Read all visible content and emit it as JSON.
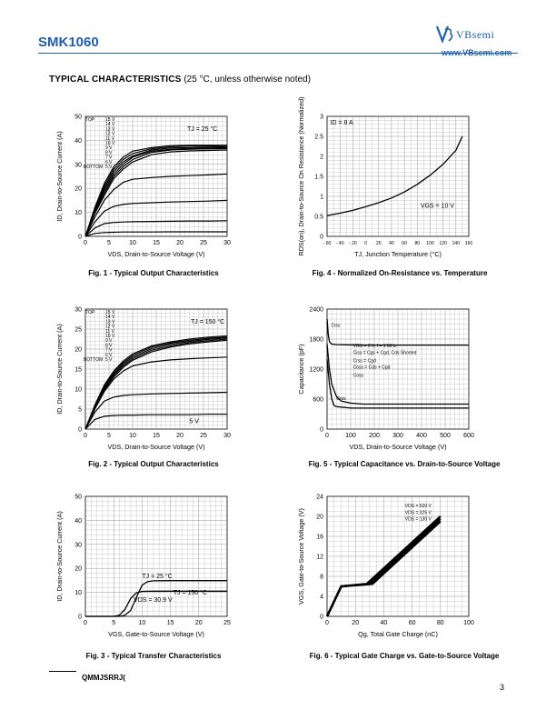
{
  "header": {
    "part_number": "SMK1060",
    "brand": "VBsemi",
    "website": "www.VBsemi.com"
  },
  "section": {
    "title": "TYPICAL CHARACTERISTICS",
    "note": "(25 °C, unless otherwise noted)"
  },
  "figures": {
    "fig1": {
      "caption": "Fig. 1 - Typical Output Characteristics"
    },
    "fig2": {
      "caption": "Fig. 2 - Typical Output Characteristics"
    },
    "fig3": {
      "caption": "Fig. 3 - Typical Transfer Characteristics"
    },
    "fig4": {
      "caption": "Fig. 4 - Normalized On-Resistance vs. Temperature"
    },
    "fig5": {
      "caption": "Fig. 5 - Typical Capacitance vs. Drain-to-Source Voltage"
    },
    "fig6": {
      "caption": "Fig. 6 - Typical Gate Charge vs. Gate-to-Source Voltage"
    }
  },
  "footer": {
    "code": "QMMJSRRJ(",
    "page": "3"
  },
  "chart_data": [
    {
      "id": "fig1",
      "type": "line",
      "xlabel": "VDS, Drain-to-Source Voltage (V)",
      "ylabel": "ID, Drain-to-Source Current (A)",
      "xlim": [
        0,
        30
      ],
      "ylim": [
        0,
        50
      ],
      "xticks": [
        0,
        5,
        10,
        15,
        20,
        25,
        30
      ],
      "yticks": [
        0,
        10,
        20,
        30,
        40,
        50
      ],
      "annotation": "TJ = 25 °C",
      "legend_top": "TOP",
      "legend_bottom": "BOTTOM",
      "legend": [
        "15 V",
        "14 V",
        "13 V",
        "12 V",
        "11 V",
        "10 V",
        "9 V",
        "8 V",
        "7 V",
        "6 V",
        "5 V"
      ],
      "series": [
        {
          "x": [
            0,
            2,
            4,
            6,
            8,
            10,
            14,
            18,
            22,
            26,
            30
          ],
          "y": [
            0,
            12,
            22,
            29,
            33,
            35.5,
            37,
            37.8,
            38,
            38,
            38
          ]
        },
        {
          "x": [
            0,
            2,
            4,
            6,
            8,
            10,
            14,
            18,
            22,
            26,
            30
          ],
          "y": [
            0,
            11.5,
            21,
            28,
            32,
            34.5,
            36.5,
            37.3,
            37.6,
            37.7,
            37.8
          ]
        },
        {
          "x": [
            0,
            2,
            4,
            6,
            8,
            10,
            14,
            18,
            22,
            26,
            30
          ],
          "y": [
            0,
            11,
            20,
            27,
            31,
            33.5,
            36,
            36.8,
            37,
            37.2,
            37.3
          ]
        },
        {
          "x": [
            0,
            2,
            4,
            6,
            8,
            10,
            14,
            18,
            22,
            26,
            30
          ],
          "y": [
            0,
            10.5,
            19,
            26,
            30,
            33,
            35.5,
            36.3,
            36.6,
            36.8,
            37
          ]
        },
        {
          "x": [
            0,
            2,
            4,
            6,
            8,
            10,
            14,
            18,
            22,
            26,
            30
          ],
          "y": [
            0,
            10,
            18,
            25,
            29,
            32,
            35,
            36,
            36.3,
            36.5,
            36.6
          ]
        },
        {
          "x": [
            0,
            2,
            4,
            6,
            8,
            10,
            14,
            18,
            22,
            26,
            30
          ],
          "y": [
            0,
            9.5,
            17,
            24,
            28,
            31,
            34,
            35.2,
            35.6,
            35.8,
            36
          ]
        },
        {
          "x": [
            0,
            2,
            4,
            6,
            8,
            10,
            14,
            18,
            22,
            26,
            30
          ],
          "y": [
            0,
            8,
            15,
            19.5,
            22.5,
            23.8,
            24.5,
            25,
            25.3,
            25.6,
            26
          ]
        },
        {
          "x": [
            0,
            2,
            4,
            6,
            8,
            10,
            14,
            18,
            22,
            26,
            30
          ],
          "y": [
            0,
            6,
            10.5,
            12.5,
            13.3,
            13.7,
            14,
            14.3,
            14.5,
            14.7,
            15
          ]
        },
        {
          "x": [
            0,
            2,
            4,
            6,
            8,
            10,
            14,
            18,
            22,
            26,
            30
          ],
          "y": [
            0,
            3.5,
            5.3,
            5.8,
            6,
            6.1,
            6.2,
            6.3,
            6.4,
            6.4,
            6.5
          ]
        },
        {
          "x": [
            0,
            2,
            4,
            6,
            8,
            10,
            14,
            18,
            22,
            26,
            30
          ],
          "y": [
            0,
            1.2,
            1.6,
            1.7,
            1.8,
            1.8,
            1.8,
            1.9,
            1.9,
            1.9,
            1.9
          ]
        }
      ]
    },
    {
      "id": "fig2",
      "type": "line",
      "xlabel": "VDS, Drain-to-Source Voltage (V)",
      "ylabel": "ID, Drain-to-Source Current (A)",
      "xlim": [
        0,
        30
      ],
      "ylim": [
        0,
        30
      ],
      "xticks": [
        0,
        5,
        10,
        15,
        20,
        25,
        30
      ],
      "yticks": [
        0,
        5,
        10,
        15,
        20,
        25,
        30
      ],
      "annotation": "TJ = 150 °C",
      "annotation2": "5 V",
      "legend_top": "TOP",
      "legend_bottom": "BOTTOM",
      "legend": [
        "15 V",
        "14 V",
        "13 V",
        "12 V",
        "11 V",
        "10 V",
        "9 V",
        "8 V",
        "7 V",
        "6 V",
        "5 V"
      ],
      "series": [
        {
          "x": [
            0,
            2,
            4,
            6,
            8,
            10,
            14,
            18,
            22,
            26,
            30
          ],
          "y": [
            0,
            6,
            11,
            14.5,
            17,
            18.8,
            20.8,
            21.8,
            22.5,
            23,
            23.3
          ]
        },
        {
          "x": [
            0,
            2,
            4,
            6,
            8,
            10,
            14,
            18,
            22,
            26,
            30
          ],
          "y": [
            0,
            5.8,
            10.7,
            14.2,
            16.6,
            18.4,
            20.5,
            21.5,
            22.2,
            22.7,
            23
          ]
        },
        {
          "x": [
            0,
            2,
            4,
            6,
            8,
            10,
            14,
            18,
            22,
            26,
            30
          ],
          "y": [
            0,
            5.6,
            10.4,
            13.8,
            16.2,
            18,
            20.1,
            21.2,
            21.9,
            22.4,
            22.8
          ]
        },
        {
          "x": [
            0,
            2,
            4,
            6,
            8,
            10,
            14,
            18,
            22,
            26,
            30
          ],
          "y": [
            0,
            5.4,
            10.1,
            13.4,
            15.8,
            17.6,
            19.7,
            20.8,
            21.6,
            22.1,
            22.5
          ]
        },
        {
          "x": [
            0,
            2,
            4,
            6,
            8,
            10,
            14,
            18,
            22,
            26,
            30
          ],
          "y": [
            0,
            5.2,
            9.8,
            13,
            15.4,
            17.2,
            19.3,
            20.5,
            21.3,
            21.8,
            22.2
          ]
        },
        {
          "x": [
            0,
            2,
            4,
            6,
            8,
            10,
            14,
            18,
            22,
            26,
            30
          ],
          "y": [
            0,
            5,
            9.4,
            12.5,
            14.5,
            15.8,
            16.8,
            17.3,
            17.6,
            17.8,
            18
          ]
        },
        {
          "x": [
            0,
            2,
            4,
            6,
            8,
            10,
            14,
            18,
            22,
            26,
            30
          ],
          "y": [
            0,
            4.2,
            7,
            8,
            8.4,
            8.6,
            8.8,
            8.9,
            9,
            9.1,
            9.2
          ]
        },
        {
          "x": [
            0,
            2,
            4,
            6,
            8,
            10,
            14,
            18,
            22,
            26,
            30
          ],
          "y": [
            0,
            2.4,
            3.2,
            3.4,
            3.5,
            3.5,
            3.6,
            3.6,
            3.6,
            3.7,
            3.7
          ]
        }
      ]
    },
    {
      "id": "fig3",
      "type": "line",
      "xlabel": "VGS, Gate-to-Source Voltage (V)",
      "ylabel": "ID, Drain-to-Source Current (A)",
      "xlim": [
        0,
        25
      ],
      "ylim": [
        0,
        50
      ],
      "xticks": [
        0,
        5,
        10,
        15,
        20,
        25
      ],
      "yticks": [
        0,
        10,
        20,
        30,
        40,
        50
      ],
      "annotations": [
        "TJ = 25 °C",
        "TJ = 150 °C",
        "VDS = 30.9 V"
      ],
      "series": [
        {
          "name": "TJ = 25 °C",
          "x": [
            0,
            6,
            7,
            8,
            9,
            10,
            11,
            12,
            15,
            20,
            25
          ],
          "y": [
            0,
            0,
            0.5,
            2.5,
            8,
            13,
            14.5,
            14.8,
            14.9,
            14.9,
            14.9
          ]
        },
        {
          "name": "TJ = 150 °C",
          "x": [
            0,
            5,
            6,
            7,
            8,
            9,
            10,
            12,
            15,
            20,
            25
          ],
          "y": [
            0,
            0,
            0.5,
            3,
            7.5,
            9.8,
            10.4,
            10.5,
            10.5,
            10.5,
            10.5
          ]
        }
      ]
    },
    {
      "id": "fig4",
      "type": "line",
      "xlabel": "TJ, Junction Temperature (°C)",
      "ylabel": "RDS(on), Drain-to-Source On Resistance (Normalized)",
      "xlim": [
        -60,
        160
      ],
      "ylim": [
        0,
        3
      ],
      "xticks": [
        -60,
        -40,
        -20,
        0,
        20,
        40,
        60,
        80,
        100,
        120,
        140,
        160
      ],
      "yticks": [
        0,
        0.5,
        1,
        1.5,
        2,
        2.5,
        3
      ],
      "annotations": [
        "ID = 8 A",
        "VGS = 10 V"
      ],
      "series": [
        {
          "x": [
            -60,
            -40,
            -20,
            0,
            20,
            40,
            60,
            80,
            100,
            120,
            140,
            150
          ],
          "y": [
            0.52,
            0.58,
            0.65,
            0.74,
            0.84,
            0.96,
            1.11,
            1.3,
            1.53,
            1.8,
            2.15,
            2.5
          ]
        }
      ]
    },
    {
      "id": "fig5",
      "type": "line",
      "xlabel": "VDS, Drain-to-Source Voltage (V)",
      "ylabel": "Capacitance (pF)",
      "xlim": [
        0,
        600
      ],
      "ylim": [
        0,
        2400
      ],
      "xticks": [
        0,
        100,
        200,
        300,
        400,
        500,
        600
      ],
      "yticks": [
        0,
        600,
        1200,
        1800,
        2400
      ],
      "annotations": [
        "Ciss",
        "VGS = 0 V, f = 1 MHz",
        "Ciss = Cgs + Cgd, Cds Shorted",
        "Crss = Cgd",
        "Coss = Cds + Cgd",
        "Coss",
        "Crss"
      ],
      "series": [
        {
          "name": "Ciss",
          "x": [
            0,
            5,
            10,
            20,
            40,
            80,
            150,
            300,
            600
          ],
          "y": [
            2200,
            1900,
            1750,
            1700,
            1690,
            1685,
            1680,
            1680,
            1680
          ]
        },
        {
          "name": "Coss",
          "x": [
            0,
            10,
            20,
            40,
            60,
            100,
            150,
            200,
            300,
            600
          ],
          "y": [
            1700,
            1200,
            900,
            650,
            560,
            520,
            500,
            500,
            500,
            500
          ]
        },
        {
          "name": "Crss",
          "x": [
            0,
            10,
            20,
            30,
            40,
            60,
            100,
            200,
            300,
            600
          ],
          "y": [
            1400,
            900,
            600,
            470,
            450,
            440,
            420,
            420,
            420,
            420
          ]
        }
      ]
    },
    {
      "id": "fig6",
      "type": "line",
      "xlabel": "Qg, Total Gate Charge (nC)",
      "ylabel": "VGS, Gate-to-Source Voltage (V)",
      "xlim": [
        0,
        100
      ],
      "ylim": [
        0,
        24
      ],
      "xticks": [
        0,
        20,
        40,
        60,
        80,
        100
      ],
      "yticks": [
        0,
        4,
        8,
        12,
        16,
        20,
        24
      ],
      "legend": [
        "VDS = 520 V",
        "VDS = 325 V",
        "VDS = 130 V"
      ],
      "series": [
        {
          "name": "VDS = 520 V",
          "x": [
            0,
            10,
            32,
            80
          ],
          "y": [
            0,
            6,
            6.5,
            19
          ]
        },
        {
          "name": "VDS = 325 V",
          "x": [
            0,
            10,
            30,
            80
          ],
          "y": [
            0,
            6,
            6.5,
            19.5
          ]
        },
        {
          "name": "VDS = 130 V",
          "x": [
            0,
            10,
            28,
            80
          ],
          "y": [
            0,
            6,
            6.5,
            20
          ]
        }
      ]
    }
  ]
}
